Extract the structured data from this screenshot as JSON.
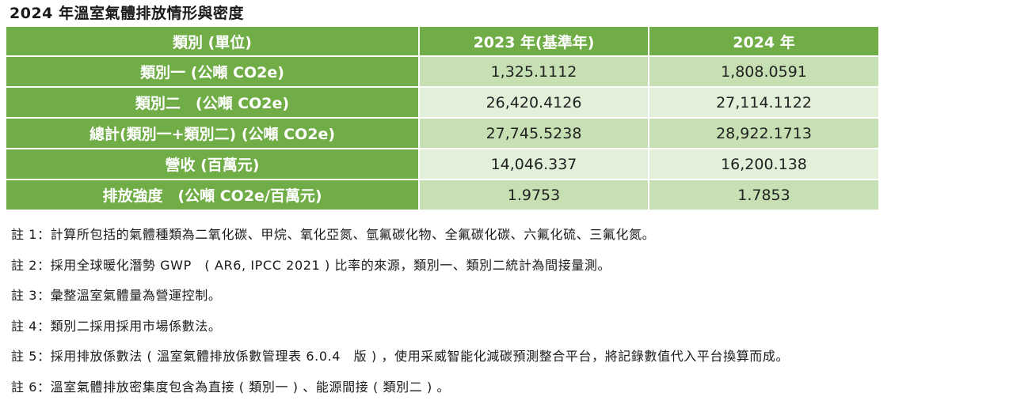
{
  "title": "2024 年溫室氣體排放情形與密度",
  "table": {
    "headers": [
      "類別 (單位)",
      "2023 年(基準年)",
      "2024 年"
    ],
    "rows": [
      {
        "label": "類別一 (公噸 CO2e)",
        "y2023": "1,325.1112",
        "y2024": "1,808.0591"
      },
      {
        "label": "類別二　(公噸 CO2e)",
        "y2023": "26,420.4126",
        "y2024": "27,114.1122"
      },
      {
        "label": "總計(類別一+類別二) (公噸 CO2e)",
        "y2023": "27,745.5238",
        "y2024": "28,922.1713"
      },
      {
        "label": "營收 (百萬元)",
        "y2023": "14,046.337",
        "y2024": "16,200.138"
      },
      {
        "label": "排放強度　(公噸 CO2e/百萬元)",
        "y2023": "1.9753",
        "y2024": "1.7853"
      }
    ]
  },
  "notes": [
    "註 1：計算所包括的氣體種類為二氧化碳、甲烷、氧化亞氮、氫氟碳化物、全氟碳化碳、六氟化硫、三氟化氮。",
    "註 2：採用全球暖化潛勢 GWP　( AR6, IPCC 2021 ) 比率的來源，類別一、類別二統計為間接量測。",
    "註 3：彙整溫室氣體量為營運控制。",
    "註 4：類別二採用採用市場係數法。",
    "註 5：採用排放係數法 ( 溫室氣體排放係數管理表 6.0.4　版 ) ，使用采威智能化減碳預測整合平台，將記錄數值代入平台換算而成。",
    "註 6：溫室氣體排放密集度包含為直接 ( 類別一 ) 、能源間接 ( 類別二 ) 。"
  ],
  "colors": {
    "header_green": "#70ad47",
    "row_light": "#c6e0b4",
    "row_lighter": "#e2efd9"
  }
}
